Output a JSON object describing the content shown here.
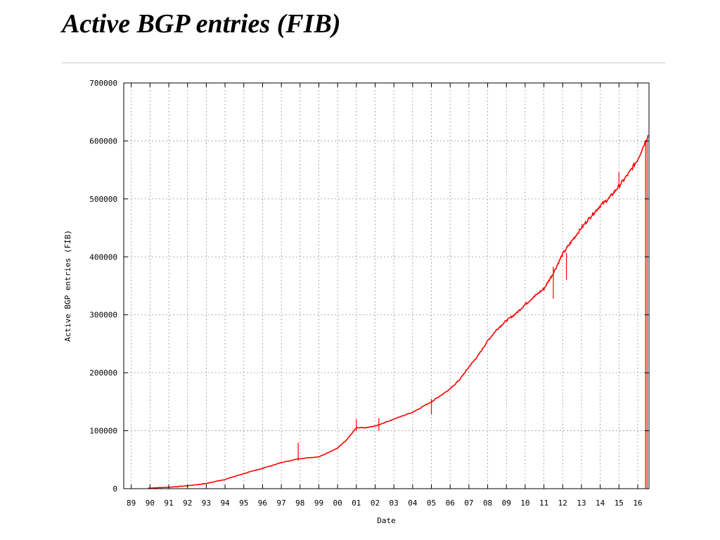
{
  "slide": {
    "title": "Active BGP entries (FIB)"
  },
  "chart_data": {
    "type": "line",
    "title": "Active BGP entries (FIB)",
    "xlabel": "Date",
    "ylabel": "Active BGP entries (FIB)",
    "xlim": [
      1988.6,
      2016.6
    ],
    "ylim": [
      0,
      700000
    ],
    "x_tick_labels": [
      "89",
      "90",
      "91",
      "92",
      "93",
      "94",
      "95",
      "96",
      "97",
      "98",
      "99",
      "00",
      "01",
      "02",
      "03",
      "04",
      "05",
      "06",
      "07",
      "08",
      "09",
      "10",
      "11",
      "12",
      "13",
      "14",
      "15",
      "16"
    ],
    "y_ticks": [
      0,
      100000,
      200000,
      300000,
      400000,
      500000,
      600000,
      700000
    ],
    "grid": true,
    "color": "#ff0000",
    "series": [
      {
        "x": [
          1989.9,
          1991.0,
          1992.0,
          1993.0,
          1994.0,
          1995.0,
          1996.0,
          1997.0,
          1998.0,
          1999.0,
          2000.0,
          2000.5,
          2001.0,
          2001.5,
          2002.0,
          2003.0,
          2004.0,
          2005.0,
          2006.0,
          2006.5,
          2007.0,
          2007.5,
          2008.0,
          2008.5,
          2009.0,
          2009.5,
          2010.0,
          2010.5,
          2011.0,
          2011.5,
          2012.0,
          2012.5,
          2013.0,
          2013.5,
          2014.0,
          2014.5,
          2015.0,
          2015.5,
          2016.0,
          2016.55
        ],
        "y": [
          1000,
          2500,
          5000,
          9000,
          16000,
          26000,
          35000,
          45000,
          52000,
          55000,
          70000,
          85000,
          105000,
          105000,
          108000,
          120000,
          132000,
          150000,
          172000,
          188000,
          210000,
          230000,
          255000,
          275000,
          290000,
          302000,
          318000,
          332000,
          345000,
          372000,
          405000,
          428000,
          450000,
          470000,
          488000,
          502000,
          522000,
          543000,
          568000,
          610000
        ]
      }
    ],
    "spikes": [
      {
        "x": 1997.9,
        "y_from": 48000,
        "y_to": 79000
      },
      {
        "x": 2001.0,
        "y_from": 100000,
        "y_to": 120000
      },
      {
        "x": 2002.2,
        "y_from": 100000,
        "y_to": 122000
      },
      {
        "x": 2005.0,
        "y_from": 128000,
        "y_to": 155000
      },
      {
        "x": 2011.5,
        "y_from": 328000,
        "y_to": 383000
      },
      {
        "x": 2012.2,
        "y_from": 360000,
        "y_to": 407000
      },
      {
        "x": 2015.0,
        "y_from": 520000,
        "y_to": 546000
      },
      {
        "x": 2016.42,
        "y_from": 0,
        "y_to": 598000
      },
      {
        "x": 2016.5,
        "y_from": 0,
        "y_to": 605000
      }
    ]
  }
}
